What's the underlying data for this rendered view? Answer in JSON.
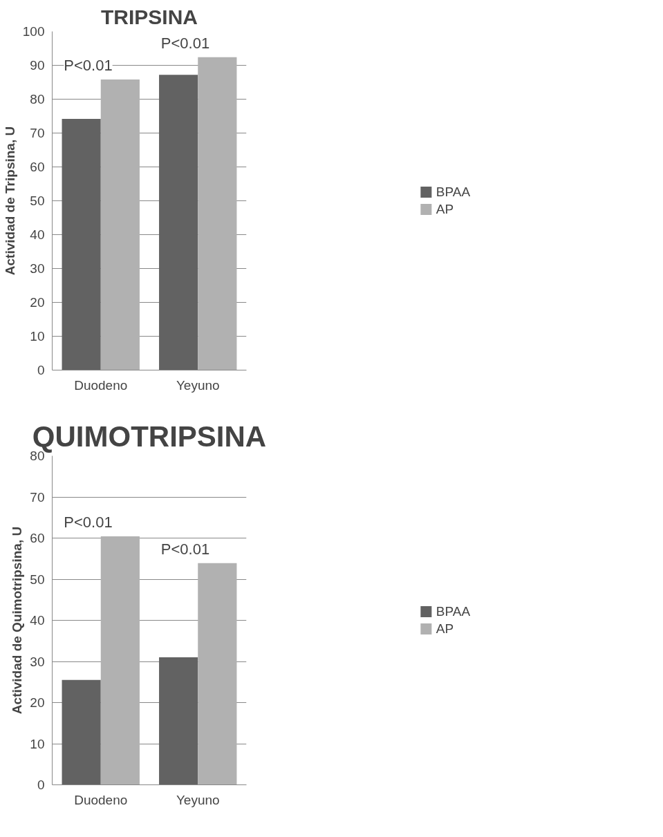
{
  "chart_data": [
    {
      "type": "bar",
      "title": "TRIPSINA",
      "ylabel": "Actividad de Tripsina, U",
      "categories": [
        "Duodeno",
        "Yeyuno"
      ],
      "series": [
        {
          "name": "BPAA",
          "color": "#626262",
          "values": [
            74.2,
            87.2
          ]
        },
        {
          "name": "AP",
          "color": "#b1b1b1",
          "values": [
            85.8,
            92.4
          ]
        }
      ],
      "ylim": [
        0,
        100
      ],
      "yticks": [
        0,
        10,
        20,
        30,
        40,
        50,
        60,
        70,
        80,
        90,
        100
      ],
      "grid": "y",
      "legend": "right",
      "annotations": [
        {
          "text": "P<0.01",
          "x": "Duodeno",
          "y": 85.8
        },
        {
          "text": "P<0.01",
          "x": "Yeyuno",
          "y": 92.4
        }
      ]
    },
    {
      "type": "bar",
      "title": "QUIMOTRIPSINA",
      "ylabel": "Actividad de Quimotripsina, U",
      "categories": [
        "Duodeno",
        "Yeyuno"
      ],
      "series": [
        {
          "name": "BPAA",
          "color": "#626262",
          "values": [
            25.5,
            31
          ]
        },
        {
          "name": "AP",
          "color": "#b1b1b1",
          "values": [
            60.4,
            53.9
          ]
        }
      ],
      "ylim": [
        0,
        80
      ],
      "yticks": [
        0,
        10,
        20,
        30,
        40,
        50,
        60,
        70,
        80
      ],
      "grid": "y",
      "legend": "right",
      "annotations": [
        {
          "text": "P<0.01",
          "x": "Duodeno",
          "y": 60.4
        },
        {
          "text": "P<0.01",
          "x": "Yeyuno",
          "y": 53.9
        }
      ]
    }
  ]
}
